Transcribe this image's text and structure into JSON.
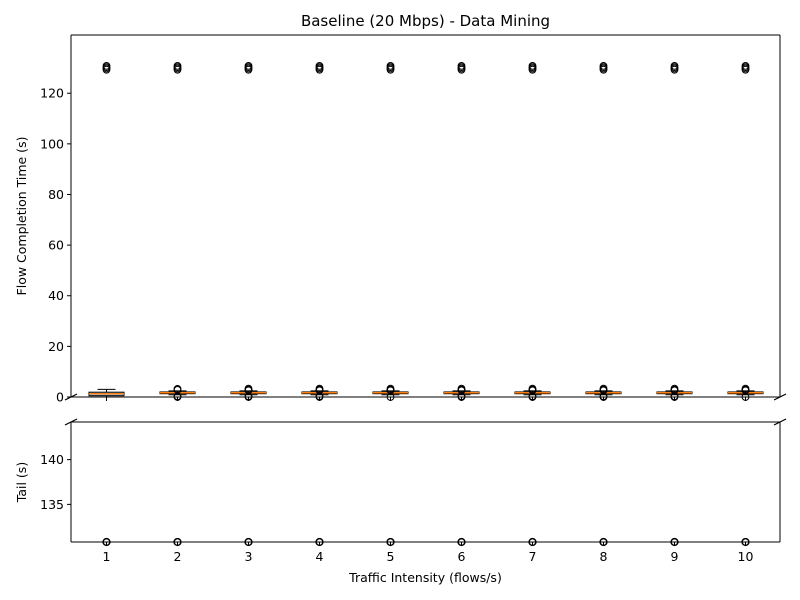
{
  "chart_data": {
    "type": "box",
    "title": "Baseline (20 Mbps) - Data Mining",
    "xlabel": "Traffic Intensity (flows/s)",
    "categories": [
      "1",
      "2",
      "3",
      "4",
      "5",
      "6",
      "7",
      "8",
      "9",
      "10"
    ],
    "panels": [
      {
        "name": "main",
        "ylabel": "Flow Completion Time (s)",
        "ylim": [
          0,
          143
        ],
        "yticks": [
          0,
          20,
          40,
          60,
          80,
          100,
          120
        ],
        "boxes": [
          {
            "q1": 0.5,
            "median": 1.3,
            "q3": 1.9,
            "whisker_low": 0.0,
            "whisker_high": 3.0,
            "outliers": [
              129.3,
              129.8,
              130.3,
              130.8
            ]
          },
          {
            "q1": 1.3,
            "median": 1.7,
            "q3": 2.0,
            "whisker_low": 0.9,
            "whisker_high": 2.4,
            "outliers": [
              0.0,
              0.3,
              2.8,
              3.2,
              129.3,
              129.8,
              130.3,
              130.8
            ]
          },
          {
            "q1": 1.3,
            "median": 1.7,
            "q3": 2.0,
            "whisker_low": 0.9,
            "whisker_high": 2.4,
            "outliers": [
              0.0,
              0.3,
              2.6,
              2.9,
              3.3,
              129.3,
              129.8,
              130.3,
              130.8
            ]
          },
          {
            "q1": 1.3,
            "median": 1.7,
            "q3": 2.0,
            "whisker_low": 0.9,
            "whisker_high": 2.4,
            "outliers": [
              0.0,
              0.3,
              2.6,
              2.9,
              3.3,
              129.3,
              129.8,
              130.3,
              130.8
            ]
          },
          {
            "q1": 1.3,
            "median": 1.7,
            "q3": 2.0,
            "whisker_low": 0.9,
            "whisker_high": 2.4,
            "outliers": [
              0.0,
              2.6,
              2.9,
              3.3,
              129.3,
              129.8,
              130.3,
              130.8
            ]
          },
          {
            "q1": 1.3,
            "median": 1.7,
            "q3": 2.0,
            "whisker_low": 0.9,
            "whisker_high": 2.4,
            "outliers": [
              0.0,
              0.3,
              2.6,
              2.9,
              3.3,
              129.3,
              129.8,
              130.3,
              130.8
            ]
          },
          {
            "q1": 1.3,
            "median": 1.7,
            "q3": 2.0,
            "whisker_low": 0.9,
            "whisker_high": 2.4,
            "outliers": [
              0.0,
              0.3,
              2.6,
              2.9,
              3.3,
              129.3,
              129.8,
              130.3,
              130.8
            ]
          },
          {
            "q1": 1.3,
            "median": 1.7,
            "q3": 2.0,
            "whisker_low": 0.9,
            "whisker_high": 2.4,
            "outliers": [
              0.0,
              0.3,
              2.6,
              2.9,
              3.3,
              129.3,
              129.8,
              130.3,
              130.8
            ]
          },
          {
            "q1": 1.3,
            "median": 1.7,
            "q3": 2.0,
            "whisker_low": 0.9,
            "whisker_high": 2.4,
            "outliers": [
              0.0,
              0.3,
              2.6,
              2.9,
              3.3,
              129.3,
              129.8,
              130.3,
              130.8
            ]
          },
          {
            "q1": 1.3,
            "median": 1.7,
            "q3": 2.0,
            "whisker_low": 0.9,
            "whisker_high": 2.4,
            "outliers": [
              0.0,
              2.6,
              2.9,
              3.3,
              129.3,
              129.8,
              130.3,
              130.8
            ]
          }
        ]
      },
      {
        "name": "tail",
        "ylabel": "Tail (s)",
        "ylim": [
          130.8,
          144.2
        ],
        "yticks": [
          135,
          140
        ],
        "outliers": [
          130.8,
          130.8,
          130.8,
          130.8,
          130.8,
          130.8,
          130.8,
          130.8,
          130.8,
          130.8
        ]
      }
    ],
    "colors": {
      "box_fill": "#a9c9e0",
      "median": "#ff7f0e",
      "axis": "#000000"
    },
    "broken_axis": true,
    "grid": false
  }
}
